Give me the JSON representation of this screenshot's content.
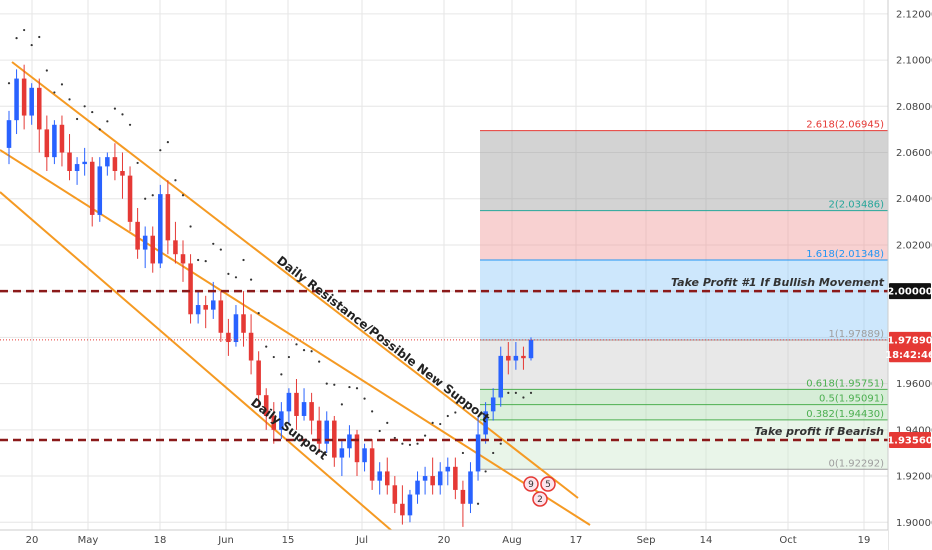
{
  "chart_data": {
    "type": "candlestick",
    "title": "",
    "ylim": [
      1.888,
      2.126
    ],
    "y_ticks": [
      "2.12000",
      "2.10000",
      "2.08000",
      "2.06000",
      "2.04000",
      "2.02000",
      "2.00000",
      "1.98000",
      "1.96000",
      "1.94000",
      "1.92000",
      "1.90000"
    ],
    "x_ticks": [
      "20",
      "May",
      "18",
      "Jun",
      "15",
      "Jul",
      "20",
      "Aug",
      "17",
      "Sep",
      "14",
      "Oct",
      "19"
    ],
    "price_badges": [
      {
        "text": "2.00000",
        "value": 2.0,
        "bg": "#111111",
        "fg": "#ffffff"
      },
      {
        "text": "1.97890",
        "value": 1.9789,
        "bg": "#e53935",
        "fg": "#ffffff"
      },
      {
        "text": "18:42:46",
        "value": 1.9727,
        "bg": "#e53935",
        "fg": "#ffffff"
      },
      {
        "text": "1.93560",
        "value": 1.9356,
        "bg": "#e53935",
        "fg": "#ffffff"
      }
    ],
    "fib_levels": [
      {
        "ratio": "2.618",
        "label": "2.618(2.06945)",
        "value": 2.06945,
        "color": "#e53935"
      },
      {
        "ratio": "2",
        "label": "2(2.03486)",
        "value": 2.03486,
        "color": "#26a69a"
      },
      {
        "ratio": "1.618",
        "label": "1.618(2.01348)",
        "value": 2.01348,
        "color": "#2196f3"
      },
      {
        "ratio": "1",
        "label": "1(1.97889)",
        "value": 1.97889,
        "color": "#9e9e9e"
      },
      {
        "ratio": "0.618",
        "label": "0.618(1.95751)",
        "value": 1.95751,
        "color": "#4caf50"
      },
      {
        "ratio": "0.5",
        "label": "0.5(1.95091)",
        "value": 1.95091,
        "color": "#4caf50"
      },
      {
        "ratio": "0.382",
        "label": "0.382(1.94430)",
        "value": 1.9443,
        "color": "#4caf50"
      },
      {
        "ratio": "0",
        "label": "0(1.92292)",
        "value": 1.92292,
        "color": "#9e9e9e"
      }
    ],
    "fib_zones": [
      {
        "from": 2.03486,
        "to": 2.06945,
        "color": "#9e9e9e",
        "opacity": 0.45
      },
      {
        "from": 2.01348,
        "to": 2.03486,
        "color": "#ef9a9a",
        "opacity": 0.45
      },
      {
        "from": 1.97889,
        "to": 2.01348,
        "color": "#90caf9",
        "opacity": 0.45
      },
      {
        "from": 1.95751,
        "to": 1.97889,
        "color": "#bdbdbd",
        "opacity": 0.35
      },
      {
        "from": 1.95091,
        "to": 1.95751,
        "color": "#a5d6a7",
        "opacity": 0.45
      },
      {
        "from": 1.9443,
        "to": 1.95091,
        "color": "#a5d6a7",
        "opacity": 0.4
      },
      {
        "from": 1.92292,
        "to": 1.9443,
        "color": "#c8e6c9",
        "opacity": 0.4
      }
    ],
    "horizontal_lines": [
      {
        "value": 2.0,
        "label": "Take Profit #1 If Bullish Movement",
        "color": "#8b1a1a"
      },
      {
        "value": 1.9356,
        "label": "Take profit if Bearish",
        "color": "#8b1a1a"
      }
    ],
    "channel_labels": [
      "Daily Resistance/Possible New Support",
      "Daily Support"
    ],
    "event_markers": [
      "9",
      "5",
      "2"
    ],
    "candles": [
      {
        "o": 2.062,
        "h": 2.078,
        "c": 2.074,
        "l": 2.055
      },
      {
        "o": 2.074,
        "h": 2.096,
        "c": 2.092,
        "l": 2.068
      },
      {
        "o": 2.092,
        "h": 2.098,
        "c": 2.076,
        "l": 2.07
      },
      {
        "o": 2.076,
        "h": 2.09,
        "c": 2.088,
        "l": 2.072
      },
      {
        "o": 2.088,
        "h": 2.092,
        "c": 2.07,
        "l": 2.06
      },
      {
        "o": 2.07,
        "h": 2.076,
        "c": 2.058,
        "l": 2.052
      },
      {
        "o": 2.058,
        "h": 2.074,
        "c": 2.072,
        "l": 2.055
      },
      {
        "o": 2.072,
        "h": 2.076,
        "c": 2.06,
        "l": 2.054
      },
      {
        "o": 2.06,
        "h": 2.068,
        "c": 2.052,
        "l": 2.048
      },
      {
        "o": 2.052,
        "h": 2.058,
        "c": 2.055,
        "l": 2.046
      },
      {
        "o": 2.055,
        "h": 2.062,
        "c": 2.056,
        "l": 2.05
      },
      {
        "o": 2.056,
        "h": 2.058,
        "c": 2.033,
        "l": 2.028
      },
      {
        "o": 2.033,
        "h": 2.058,
        "c": 2.054,
        "l": 2.03
      },
      {
        "o": 2.054,
        "h": 2.06,
        "c": 2.058,
        "l": 2.05
      },
      {
        "o": 2.058,
        "h": 2.064,
        "c": 2.052,
        "l": 2.048
      },
      {
        "o": 2.052,
        "h": 2.06,
        "c": 2.05,
        "l": 2.04
      },
      {
        "o": 2.05,
        "h": 2.054,
        "c": 2.03,
        "l": 2.026
      },
      {
        "o": 2.03,
        "h": 2.036,
        "c": 2.018,
        "l": 2.014
      },
      {
        "o": 2.018,
        "h": 2.028,
        "c": 2.024,
        "l": 2.01
      },
      {
        "o": 2.024,
        "h": 2.028,
        "c": 2.012,
        "l": 2.008
      },
      {
        "o": 2.012,
        "h": 2.046,
        "c": 2.042,
        "l": 2.01
      },
      {
        "o": 2.042,
        "h": 2.048,
        "c": 2.022,
        "l": 2.016
      },
      {
        "o": 2.022,
        "h": 2.03,
        "c": 2.016,
        "l": 2.012
      },
      {
        "o": 2.016,
        "h": 2.022,
        "c": 2.012,
        "l": 2.004
      },
      {
        "o": 2.012,
        "h": 2.016,
        "c": 1.99,
        "l": 1.986
      },
      {
        "o": 1.99,
        "h": 2.0,
        "c": 1.994,
        "l": 1.986
      },
      {
        "o": 1.994,
        "h": 1.998,
        "c": 1.992,
        "l": 1.984
      },
      {
        "o": 1.992,
        "h": 2.004,
        "c": 1.996,
        "l": 1.988
      },
      {
        "o": 1.996,
        "h": 2.0,
        "c": 1.982,
        "l": 1.978
      },
      {
        "o": 1.982,
        "h": 1.988,
        "c": 1.978,
        "l": 1.972
      },
      {
        "o": 1.978,
        "h": 1.994,
        "c": 1.99,
        "l": 1.976
      },
      {
        "o": 1.99,
        "h": 2.0,
        "c": 1.982,
        "l": 1.976
      },
      {
        "o": 1.982,
        "h": 1.99,
        "c": 1.97,
        "l": 1.964
      },
      {
        "o": 1.97,
        "h": 1.974,
        "c": 1.955,
        "l": 1.95
      },
      {
        "o": 1.955,
        "h": 1.958,
        "c": 1.946,
        "l": 1.94
      },
      {
        "o": 1.946,
        "h": 1.952,
        "c": 1.94,
        "l": 1.934
      },
      {
        "o": 1.94,
        "h": 1.952,
        "c": 1.948,
        "l": 1.936
      },
      {
        "o": 1.948,
        "h": 1.958,
        "c": 1.956,
        "l": 1.942
      },
      {
        "o": 1.956,
        "h": 1.962,
        "c": 1.946,
        "l": 1.94
      },
      {
        "o": 1.946,
        "h": 1.958,
        "c": 1.952,
        "l": 1.944
      },
      {
        "o": 1.952,
        "h": 1.956,
        "c": 1.944,
        "l": 1.938
      },
      {
        "o": 1.944,
        "h": 1.95,
        "c": 1.934,
        "l": 1.93
      },
      {
        "o": 1.934,
        "h": 1.948,
        "c": 1.944,
        "l": 1.93
      },
      {
        "o": 1.944,
        "h": 1.946,
        "c": 1.928,
        "l": 1.924
      },
      {
        "o": 1.928,
        "h": 1.936,
        "c": 1.932,
        "l": 1.92
      },
      {
        "o": 1.932,
        "h": 1.942,
        "c": 1.938,
        "l": 1.928
      },
      {
        "o": 1.938,
        "h": 1.94,
        "c": 1.926,
        "l": 1.92
      },
      {
        "o": 1.926,
        "h": 1.934,
        "c": 1.932,
        "l": 1.922
      },
      {
        "o": 1.932,
        "h": 1.936,
        "c": 1.918,
        "l": 1.914
      },
      {
        "o": 1.918,
        "h": 1.926,
        "c": 1.922,
        "l": 1.912
      },
      {
        "o": 1.922,
        "h": 1.928,
        "c": 1.916,
        "l": 1.912
      },
      {
        "o": 1.916,
        "h": 1.92,
        "c": 1.908,
        "l": 1.904
      },
      {
        "o": 1.908,
        "h": 1.916,
        "c": 1.903,
        "l": 1.899
      },
      {
        "o": 1.903,
        "h": 1.914,
        "c": 1.912,
        "l": 1.9
      },
      {
        "o": 1.912,
        "h": 1.922,
        "c": 1.918,
        "l": 1.908
      },
      {
        "o": 1.918,
        "h": 1.924,
        "c": 1.92,
        "l": 1.912
      },
      {
        "o": 1.92,
        "h": 1.928,
        "c": 1.916,
        "l": 1.912
      },
      {
        "o": 1.916,
        "h": 1.926,
        "c": 1.922,
        "l": 1.912
      },
      {
        "o": 1.922,
        "h": 1.928,
        "c": 1.924,
        "l": 1.916
      },
      {
        "o": 1.924,
        "h": 1.928,
        "c": 1.914,
        "l": 1.91
      },
      {
        "o": 1.914,
        "h": 1.918,
        "c": 1.908,
        "l": 1.898
      },
      {
        "o": 1.908,
        "h": 1.926,
        "c": 1.922,
        "l": 1.904
      },
      {
        "o": 1.922,
        "h": 1.946,
        "c": 1.938,
        "l": 1.918
      },
      {
        "o": 1.938,
        "h": 1.952,
        "c": 1.948,
        "l": 1.934
      },
      {
        "o": 1.948,
        "h": 1.958,
        "c": 1.954,
        "l": 1.944
      },
      {
        "o": 1.954,
        "h": 1.976,
        "c": 1.972,
        "l": 1.95
      },
      {
        "o": 1.972,
        "h": 1.978,
        "c": 1.97,
        "l": 1.964
      },
      {
        "o": 1.97,
        "h": 1.978,
        "c": 1.972,
        "l": 1.966
      },
      {
        "o": 1.972,
        "h": 1.976,
        "c": 1.971,
        "l": 1.966
      },
      {
        "o": 1.971,
        "h": 1.98,
        "c": 1.9789,
        "l": 1.97
      }
    ]
  }
}
